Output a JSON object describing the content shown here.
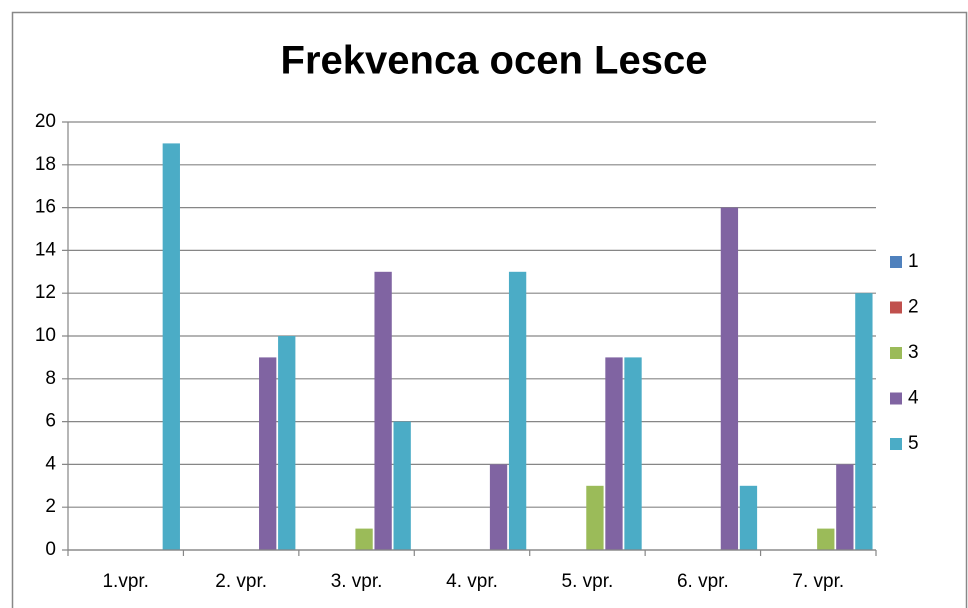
{
  "chart_data": {
    "type": "bar",
    "title": "Frekvenca ocen Lesce",
    "categories": [
      "1.vpr.",
      "2. vpr.",
      "3. vpr.",
      "4. vpr.",
      "5. vpr.",
      "6. vpr.",
      "7. vpr."
    ],
    "series": [
      {
        "name": "1",
        "color": "#4f81bd",
        "values": [
          0,
          0,
          0,
          0,
          0,
          0,
          0
        ]
      },
      {
        "name": "2",
        "color": "#c0504d",
        "values": [
          0,
          0,
          0,
          0,
          0,
          0,
          0
        ]
      },
      {
        "name": "3",
        "color": "#9bbb59",
        "values": [
          0,
          0,
          1,
          0,
          3,
          0,
          1
        ]
      },
      {
        "name": "4",
        "color": "#8064a2",
        "values": [
          0,
          9,
          13,
          4,
          9,
          16,
          4
        ]
      },
      {
        "name": "5",
        "color": "#4bacc6",
        "values": [
          19,
          10,
          6,
          13,
          9,
          3,
          12
        ]
      }
    ],
    "ylim": [
      0,
      20
    ],
    "yticks": [
      0,
      2,
      4,
      6,
      8,
      10,
      12,
      14,
      16,
      18,
      20
    ],
    "grid": true,
    "legend": "right"
  }
}
